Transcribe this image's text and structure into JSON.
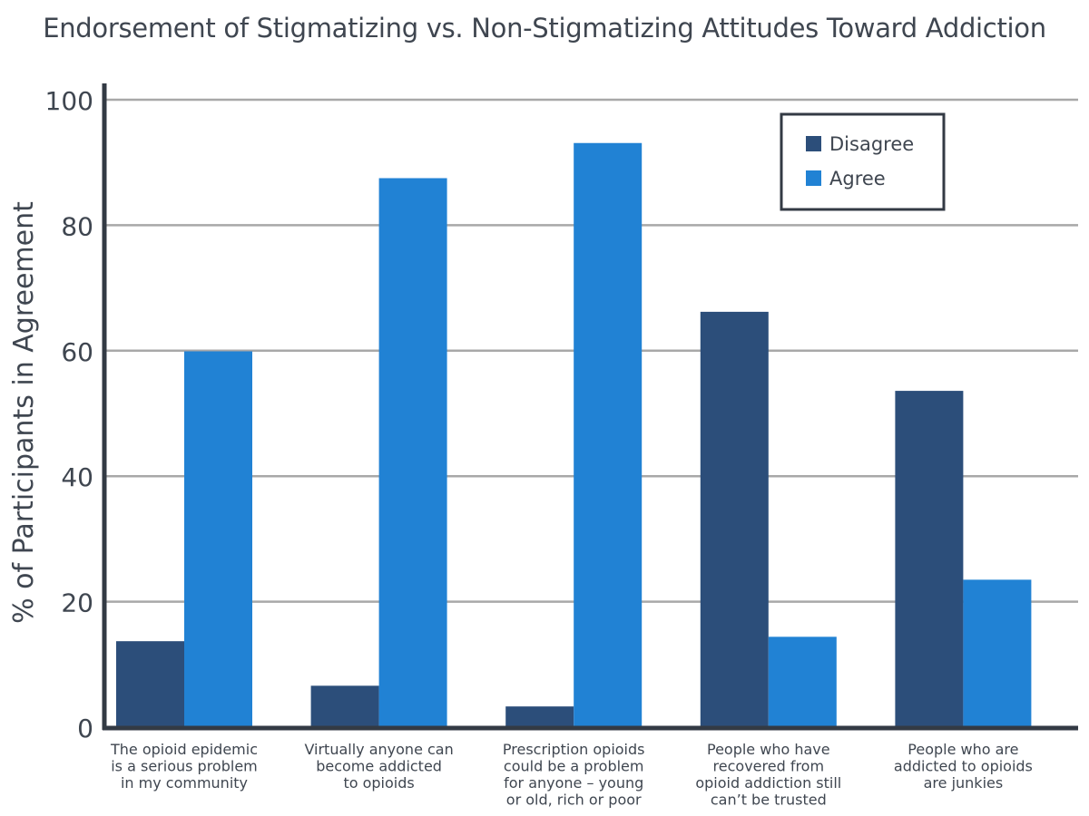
{
  "chart_data": {
    "type": "bar",
    "title": "Endorsement of Stigmatizing vs. Non-Stigmatizing Attitudes Toward Addiction",
    "xlabel": "",
    "ylabel": "% of Participants in Agreement",
    "ylim": [
      0,
      100
    ],
    "yticks": [
      "0",
      "20",
      "40",
      "60",
      "80",
      "100"
    ],
    "grid": true,
    "legend_position": "top-right",
    "categories": [
      [
        "The opioid epidemic",
        "is a serious problem",
        "in my community"
      ],
      [
        "Virtually anyone can",
        "become addicted",
        "to opioids"
      ],
      [
        "Prescription opioids",
        "could be a problem",
        "for anyone – young",
        "or old, rich or poor"
      ],
      [
        "People who have",
        "recovered from",
        "opioid addiction still",
        "can’t be trusted"
      ],
      [
        "People who are",
        "addicted to opioids",
        "are junkies"
      ]
    ],
    "series": [
      {
        "name": "Disagree",
        "color": "#2c4e7a",
        "values": [
          13.7,
          6.6,
          3.3,
          66.2,
          53.6
        ]
      },
      {
        "name": "Agree",
        "color": "#2182d4",
        "values": [
          59.9,
          87.5,
          93.1,
          14.4,
          23.5
        ]
      }
    ]
  }
}
